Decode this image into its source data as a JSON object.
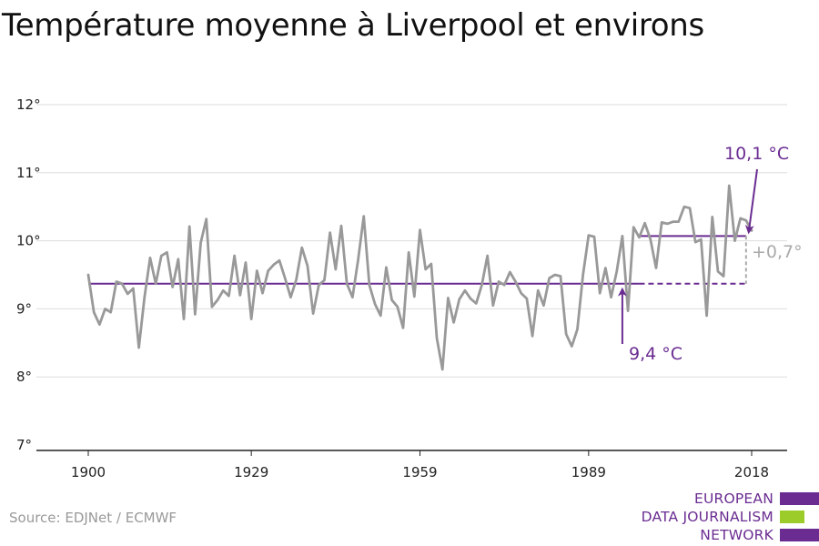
{
  "chart_data": {
    "type": "line",
    "title": "Température moyenne à Liverpool et environs",
    "xlabel": "",
    "ylabel": "",
    "x_ticks": [
      "1900",
      "1929",
      "1959",
      "1989",
      "2018"
    ],
    "y_ticks": [
      "7°",
      "8°",
      "9°",
      "10°",
      "11°",
      "12°"
    ],
    "xlim": [
      1900,
      2018
    ],
    "ylim": [
      7,
      12
    ],
    "grid": true,
    "legend": "none",
    "x": [
      1900,
      1901,
      1902,
      1903,
      1904,
      1905,
      1906,
      1907,
      1908,
      1909,
      1910,
      1911,
      1912,
      1913,
      1914,
      1915,
      1916,
      1917,
      1918,
      1919,
      1920,
      1921,
      1922,
      1923,
      1924,
      1925,
      1926,
      1927,
      1928,
      1929,
      1930,
      1931,
      1932,
      1933,
      1934,
      1935,
      1936,
      1937,
      1938,
      1939,
      1940,
      1941,
      1942,
      1943,
      1944,
      1945,
      1946,
      1947,
      1948,
      1949,
      1950,
      1951,
      1952,
      1953,
      1954,
      1955,
      1956,
      1957,
      1958,
      1959,
      1960,
      1961,
      1962,
      1963,
      1964,
      1965,
      1966,
      1967,
      1968,
      1969,
      1970,
      1971,
      1972,
      1973,
      1974,
      1975,
      1976,
      1977,
      1978,
      1979,
      1980,
      1981,
      1982,
      1983,
      1984,
      1985,
      1986,
      1987,
      1988,
      1989,
      1990,
      1991,
      1992,
      1993,
      1994,
      1995,
      1996,
      1997,
      1998,
      1999,
      2000,
      2001,
      2002,
      2003,
      2004,
      2005,
      2006,
      2007,
      2008,
      2009,
      2010,
      2011,
      2012,
      2013,
      2014,
      2015,
      2016,
      2017,
      2018
    ],
    "series": [
      {
        "color": "#999999",
        "values": [
          9.5,
          8.95,
          8.77,
          9.0,
          8.95,
          9.4,
          9.37,
          9.22,
          9.3,
          8.43,
          9.17,
          9.75,
          9.37,
          9.78,
          9.83,
          9.32,
          9.73,
          8.85,
          10.21,
          8.92,
          9.97,
          10.32,
          9.03,
          9.13,
          9.27,
          9.19,
          9.78,
          9.2,
          9.68,
          8.85,
          9.56,
          9.23,
          9.56,
          9.65,
          9.71,
          9.45,
          9.17,
          9.43,
          9.9,
          9.63,
          8.93,
          9.35,
          9.42,
          10.12,
          9.58,
          10.22,
          9.37,
          9.17,
          9.72,
          10.36,
          9.35,
          9.07,
          8.9,
          9.61,
          9.13,
          9.03,
          8.72,
          9.83,
          9.18,
          10.16,
          9.58,
          9.66,
          8.57,
          8.11,
          9.16,
          8.8,
          9.14,
          9.27,
          9.15,
          9.08,
          9.35,
          9.78,
          9.05,
          9.4,
          9.35,
          9.54,
          9.4,
          9.23,
          9.15,
          8.6,
          9.27,
          9.05,
          9.45,
          9.5,
          9.48,
          8.63,
          8.45,
          8.7,
          9.5,
          10.08,
          10.06,
          9.23,
          9.6,
          9.17,
          9.55,
          10.07,
          8.97,
          10.2,
          10.05,
          10.26,
          10.02,
          9.6,
          10.27,
          10.25,
          10.28,
          10.28,
          10.5,
          10.48,
          9.98,
          10.02,
          8.9,
          10.35,
          9.55,
          9.48,
          10.81,
          10.0,
          10.33,
          10.3,
          10.15
        ]
      }
    ],
    "reference_lines": [
      {
        "label": "9,4 °C",
        "value": 9.37,
        "x_start": 1900,
        "x_end": 1998,
        "style": "solid",
        "color": "#6a2c91"
      },
      {
        "label": "",
        "value": 9.37,
        "x_start": 1998,
        "x_end": 2017,
        "style": "dashed",
        "color": "#6a2c91"
      },
      {
        "label": "10,1 °C",
        "value": 10.07,
        "x_start": 1998,
        "x_end": 2017,
        "style": "solid",
        "color": "#6a2c91"
      }
    ],
    "annotations": [
      {
        "text": "10,1 °C",
        "color": "#6a2c91"
      },
      {
        "text": "9,4 °C",
        "color": "#6a2c91"
      },
      {
        "text": "+0,7°",
        "color": "#aaaaaa"
      }
    ]
  },
  "source": "Source: EDJNet / ECMWF",
  "logo": {
    "lines": [
      "EUROPEAN",
      "DATA JOURNALISM",
      "NETWORK"
    ],
    "colors": {
      "purple": "#6a2c91",
      "green": "#9ccc2a"
    }
  },
  "colors": {
    "accent": "#6a2c91",
    "line": "#999999",
    "grid": "#dddddd"
  }
}
